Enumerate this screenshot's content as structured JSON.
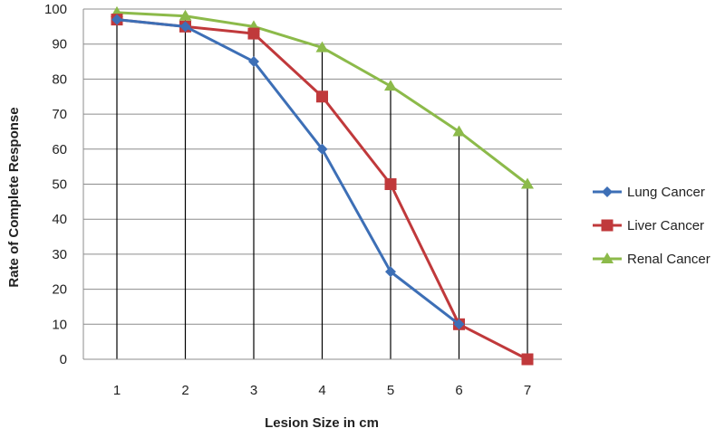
{
  "chart_data": {
    "type": "line",
    "title": "",
    "xlabel": "Lesion Size in cm",
    "ylabel": "Rate of Complete Response",
    "x": [
      1,
      2,
      3,
      4,
      5,
      6,
      7
    ],
    "x_tick_labels": [
      "1",
      "2",
      "3",
      "4",
      "5",
      "6",
      "7"
    ],
    "y_tick_labels": [
      "0",
      "10",
      "20",
      "30",
      "40",
      "50",
      "60",
      "70",
      "80",
      "90",
      "100"
    ],
    "ylim": [
      0,
      100
    ],
    "grid": "horizontal",
    "drop_lines": true,
    "legend_position": "right",
    "series": [
      {
        "name": "Lung Cancer",
        "color": "#3d6fb6",
        "marker": "diamond",
        "x": [
          1,
          2,
          3,
          4,
          5,
          6
        ],
        "values": [
          97,
          95,
          85,
          60,
          25,
          10
        ]
      },
      {
        "name": "Liver Cancer",
        "color": "#c0393b",
        "marker": "square",
        "x": [
          1,
          2,
          3,
          4,
          5,
          6,
          7
        ],
        "values": [
          97,
          95,
          93,
          75,
          50,
          10,
          0
        ]
      },
      {
        "name": "Renal Cancer",
        "color": "#8cba4a",
        "marker": "triangle",
        "x": [
          1,
          2,
          3,
          4,
          5,
          6,
          7
        ],
        "values": [
          99,
          98,
          95,
          89,
          78,
          65,
          50
        ]
      }
    ]
  }
}
